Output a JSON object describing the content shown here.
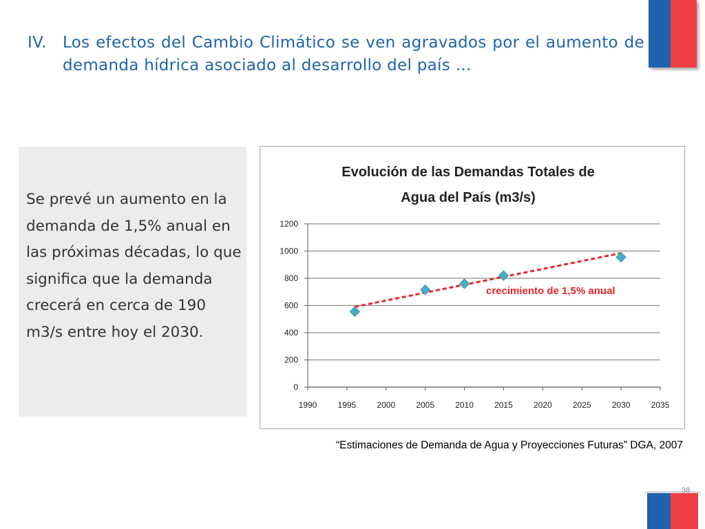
{
  "slide": {
    "title_number": "IV.",
    "title_text": "Los efectos del Cambio Climático se ven agravados por el aumento de demanda hídrica asociado al desarrollo del país …",
    "side_text": "Se prevé un aumento en la demanda de 1,5% anual en las próximas décadas, lo que significa que la demanda crecerá en cerca de 190 m3/s entre hoy el 2030.",
    "source": "“Estimaciones de Demanda de Agua y Proyecciones Futuras” DGA, 2007",
    "page_number": "38",
    "colors": {
      "brand_blue": "#1f63ad",
      "brand_red": "#ef3e44",
      "marker": "#4bacc6",
      "trend": "#e8262a"
    }
  },
  "chart_data": {
    "type": "scatter",
    "title_line1": "Evolución de las Demandas Totales de",
    "title_line2": "Agua del País (m3/s)",
    "xlabel": "",
    "ylabel": "",
    "xlim": [
      1990,
      2035
    ],
    "ylim": [
      0,
      1200
    ],
    "x_ticks": [
      1990,
      1995,
      2000,
      2005,
      2010,
      2015,
      2020,
      2025,
      2030,
      2035
    ],
    "y_ticks": [
      0,
      200,
      400,
      600,
      800,
      1000,
      1200
    ],
    "grid": "horizontal",
    "series": [
      {
        "x": [
          1996,
          2005,
          2010,
          2015,
          2030
        ],
        "y": [
          555,
          715,
          760,
          820,
          955
        ]
      }
    ],
    "trendline": {
      "x": [
        1996,
        2030
      ],
      "y": [
        590,
        985
      ]
    },
    "annotation": "crecimiento de 1,5% anual"
  }
}
